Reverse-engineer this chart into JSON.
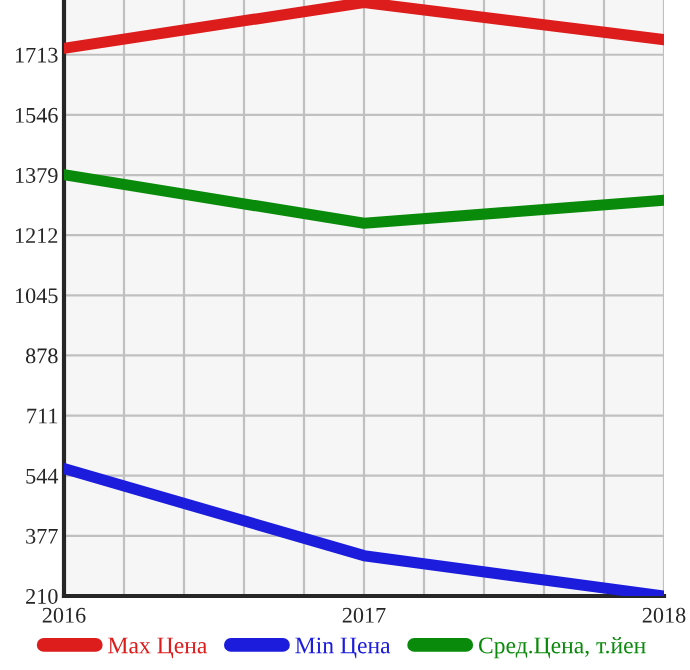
{
  "chart_data": {
    "type": "line",
    "x": [
      2016,
      2017,
      2018
    ],
    "series": [
      {
        "name": "Max Цена",
        "color": "#dd1c1c",
        "values": [
          1731,
          1858,
          1755
        ]
      },
      {
        "name": "Min Цена",
        "color": "#1c1cdd",
        "values": [
          564,
          322,
          210
        ]
      },
      {
        "name": "Сред.Цена, т.йен",
        "color": "#0a8a0a",
        "values": [
          1380,
          1245,
          1309
        ]
      }
    ],
    "xlim": [
      2016,
      2018
    ],
    "xticks": [
      2016,
      2017,
      2018
    ],
    "ylim": [
      210,
      1865
    ],
    "yticks": [
      210,
      377,
      544,
      711,
      878,
      1045,
      1212,
      1379,
      1546,
      1713
    ],
    "grid": true,
    "legend": "bottom",
    "marker": "none",
    "line_style": "solid"
  }
}
